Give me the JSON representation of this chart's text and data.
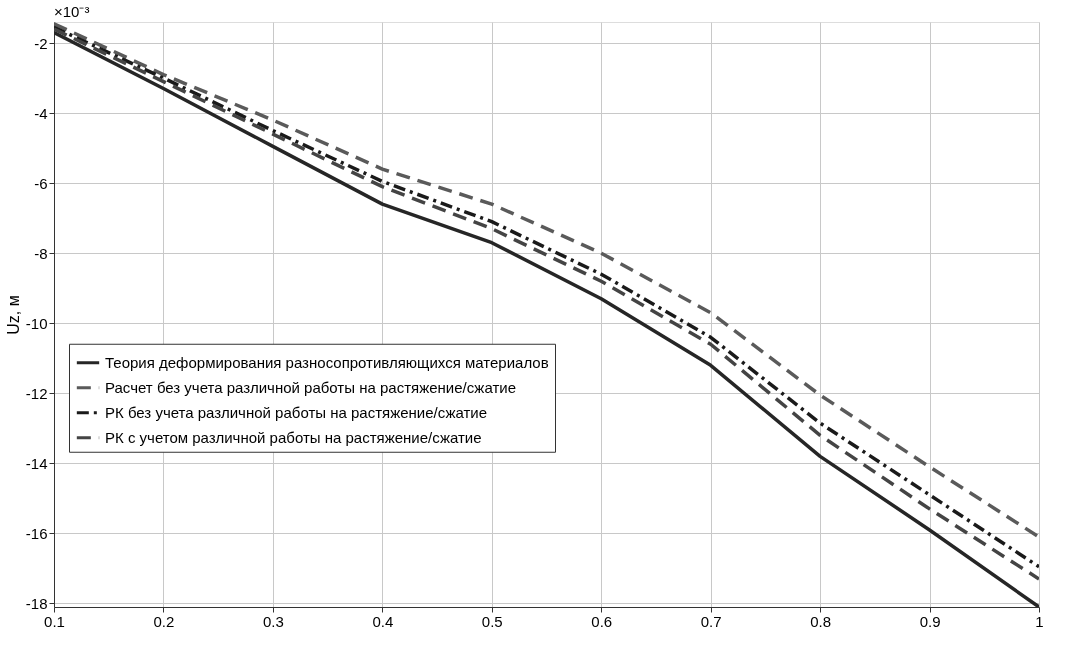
{
  "chart_data": {
    "type": "line",
    "xlabel": null,
    "ylabel": "Uz, м",
    "x": [
      0.1,
      0.2,
      0.3,
      0.4,
      0.5,
      0.6,
      0.7,
      0.8,
      0.9,
      1.0
    ],
    "series": [
      {
        "name": "Теория деформирования разносопротивляющихся материалов",
        "color": "#262626",
        "line_style": "solid",
        "values": [
          -1.7,
          -3.3,
          -4.95,
          -6.6,
          -7.7,
          -9.3,
          -11.2,
          -13.8,
          -15.9,
          -18.1
        ]
      },
      {
        "name": "Расчет без учета различной работы на растяжение/сжатие",
        "color": "#5a5a5a",
        "line_style": "dashed",
        "values": [
          -1.45,
          -2.9,
          -4.2,
          -5.6,
          -6.6,
          -8.0,
          -9.7,
          -12.05,
          -14.1,
          -16.1
        ]
      },
      {
        "name": "РК без учета различной работы на растяжение/сжатие",
        "color": "#1a1a1a",
        "line_style": "dashdot",
        "values": [
          -1.55,
          -3.0,
          -4.5,
          -5.95,
          -7.1,
          -8.6,
          -10.4,
          -12.85,
          -14.9,
          -16.95
        ]
      },
      {
        "name": "РК с учетом различной работы на растяжение/сжатие",
        "color": "#444444",
        "line_style": "dashed",
        "values": [
          -1.6,
          -3.1,
          -4.6,
          -6.1,
          -7.3,
          -8.8,
          -10.6,
          -13.2,
          -15.3,
          -17.3
        ]
      }
    ],
    "xlim": [
      0.1,
      1.0
    ],
    "xticks": [
      0.1,
      0.2,
      0.3,
      0.4,
      0.5,
      0.6,
      0.7,
      0.8,
      0.9,
      {
        "value": 1.0,
        "label": "1"
      }
    ],
    "ylim": [
      -18.1,
      -1.4
    ],
    "yticks": [
      -18,
      -16,
      -14,
      -12,
      -10,
      -8,
      -6,
      -4,
      -2
    ],
    "annotations": [
      "×10⁻³"
    ],
    "grid": true,
    "legend": "left",
    "marker": "none"
  }
}
